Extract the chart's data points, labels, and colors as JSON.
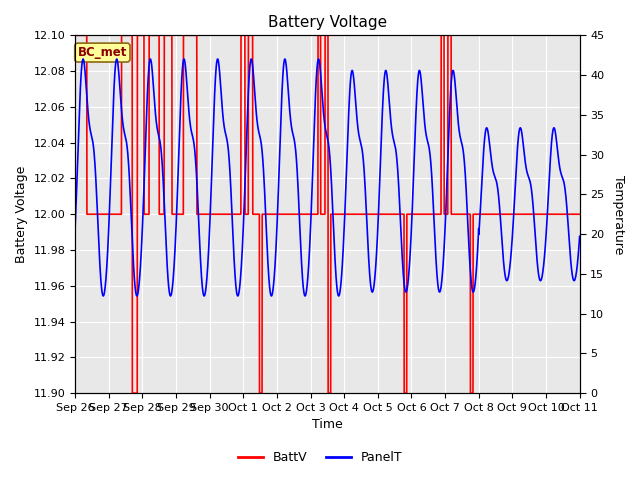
{
  "title": "Battery Voltage",
  "xlabel": "Time",
  "ylabel_left": "Battery Voltage",
  "ylabel_right": "Temperature",
  "ylim_left": [
    11.9,
    12.1
  ],
  "ylim_right": [
    0,
    45
  ],
  "bg_color": "#e8e8e8",
  "inner_bg_color": "#dcdcdc",
  "annotation_text": "BC_met",
  "annotation_bg": "#ffff99",
  "annotation_edge": "#8B6914",
  "batt_color": "red",
  "panel_color": "blue",
  "legend_batt": "BattV",
  "legend_panel": "PanelT",
  "xtick_labels": [
    "Sep 26",
    "Sep 27",
    "Sep 28",
    "Sep 29",
    "Sep 30",
    "Oct 1",
    "Oct 2",
    "Oct 3",
    "Oct 4",
    "Oct 5",
    "Oct 6",
    "Oct 7",
    "Oct 8",
    "Oct 9",
    "Oct 10",
    "Oct 11"
  ],
  "yticks_right": [
    0,
    5,
    10,
    15,
    20,
    25,
    30,
    35,
    40,
    45
  ],
  "yticks_left": [
    11.9,
    11.92,
    11.94,
    11.96,
    11.98,
    12.0,
    12.02,
    12.04,
    12.06,
    12.08,
    12.1
  ]
}
